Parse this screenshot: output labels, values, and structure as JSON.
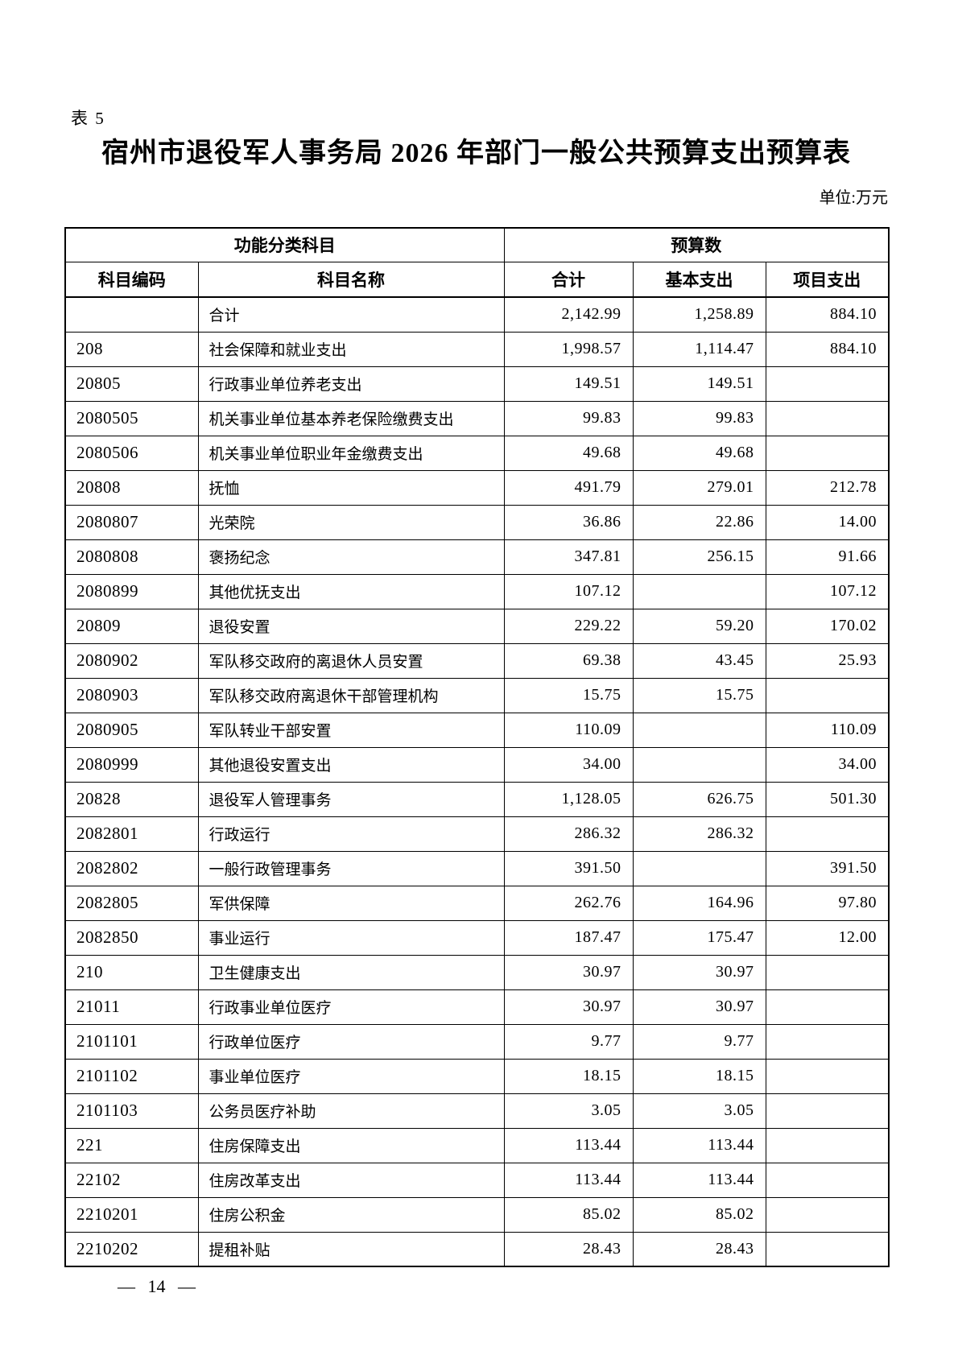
{
  "page": {
    "table_label": "表 5",
    "title": "宿州市退役军人事务局 2026 年部门一般公共预算支出预算表",
    "unit_note": "单位:万元",
    "page_number": "— 14 —"
  },
  "table": {
    "header_groups": {
      "function_category": "功能分类科目",
      "budget_amount": "预算数"
    },
    "columns": {
      "code": "科目编码",
      "name": "科目名称",
      "total": "合计",
      "basic": "基本支出",
      "project": "项目支出"
    },
    "rows": [
      {
        "code": "",
        "name": "合计",
        "total": "2,142.99",
        "basic": "1,258.89",
        "project": "884.10"
      },
      {
        "code": "208",
        "name": "社会保障和就业支出",
        "total": "1,998.57",
        "basic": "1,114.47",
        "project": "884.10"
      },
      {
        "code": "20805",
        "name": "行政事业单位养老支出",
        "total": "149.51",
        "basic": "149.51",
        "project": ""
      },
      {
        "code": "2080505",
        "name": "机关事业单位基本养老保险缴费支出",
        "total": "99.83",
        "basic": "99.83",
        "project": ""
      },
      {
        "code": "2080506",
        "name": "机关事业单位职业年金缴费支出",
        "total": "49.68",
        "basic": "49.68",
        "project": ""
      },
      {
        "code": "20808",
        "name": "抚恤",
        "total": "491.79",
        "basic": "279.01",
        "project": "212.78"
      },
      {
        "code": "2080807",
        "name": "光荣院",
        "total": "36.86",
        "basic": "22.86",
        "project": "14.00"
      },
      {
        "code": "2080808",
        "name": "褒扬纪念",
        "total": "347.81",
        "basic": "256.15",
        "project": "91.66"
      },
      {
        "code": "2080899",
        "name": "其他优抚支出",
        "total": "107.12",
        "basic": "",
        "project": "107.12"
      },
      {
        "code": "20809",
        "name": "退役安置",
        "total": "229.22",
        "basic": "59.20",
        "project": "170.02"
      },
      {
        "code": "2080902",
        "name": "军队移交政府的离退休人员安置",
        "total": "69.38",
        "basic": "43.45",
        "project": "25.93"
      },
      {
        "code": "2080903",
        "name": "军队移交政府离退休干部管理机构",
        "total": "15.75",
        "basic": "15.75",
        "project": ""
      },
      {
        "code": "2080905",
        "name": "军队转业干部安置",
        "total": "110.09",
        "basic": "",
        "project": "110.09"
      },
      {
        "code": "2080999",
        "name": "其他退役安置支出",
        "total": "34.00",
        "basic": "",
        "project": "34.00"
      },
      {
        "code": "20828",
        "name": "退役军人管理事务",
        "total": "1,128.05",
        "basic": "626.75",
        "project": "501.30"
      },
      {
        "code": "2082801",
        "name": "行政运行",
        "total": "286.32",
        "basic": "286.32",
        "project": ""
      },
      {
        "code": "2082802",
        "name": "一般行政管理事务",
        "total": "391.50",
        "basic": "",
        "project": "391.50"
      },
      {
        "code": "2082805",
        "name": "军供保障",
        "total": "262.76",
        "basic": "164.96",
        "project": "97.80"
      },
      {
        "code": "2082850",
        "name": "事业运行",
        "total": "187.47",
        "basic": "175.47",
        "project": "12.00"
      },
      {
        "code": "210",
        "name": "卫生健康支出",
        "total": "30.97",
        "basic": "30.97",
        "project": ""
      },
      {
        "code": "21011",
        "name": "行政事业单位医疗",
        "total": "30.97",
        "basic": "30.97",
        "project": ""
      },
      {
        "code": "2101101",
        "name": "行政单位医疗",
        "total": "9.77",
        "basic": "9.77",
        "project": ""
      },
      {
        "code": "2101102",
        "name": "事业单位医疗",
        "total": "18.15",
        "basic": "18.15",
        "project": ""
      },
      {
        "code": "2101103",
        "name": "公务员医疗补助",
        "total": "3.05",
        "basic": "3.05",
        "project": ""
      },
      {
        "code": "221",
        "name": "住房保障支出",
        "total": "113.44",
        "basic": "113.44",
        "project": ""
      },
      {
        "code": "22102",
        "name": "住房改革支出",
        "total": "113.44",
        "basic": "113.44",
        "project": ""
      },
      {
        "code": "2210201",
        "name": "住房公积金",
        "total": "85.02",
        "basic": "85.02",
        "project": ""
      },
      {
        "code": "2210202",
        "name": "提租补贴",
        "total": "28.43",
        "basic": "28.43",
        "project": ""
      }
    ]
  }
}
